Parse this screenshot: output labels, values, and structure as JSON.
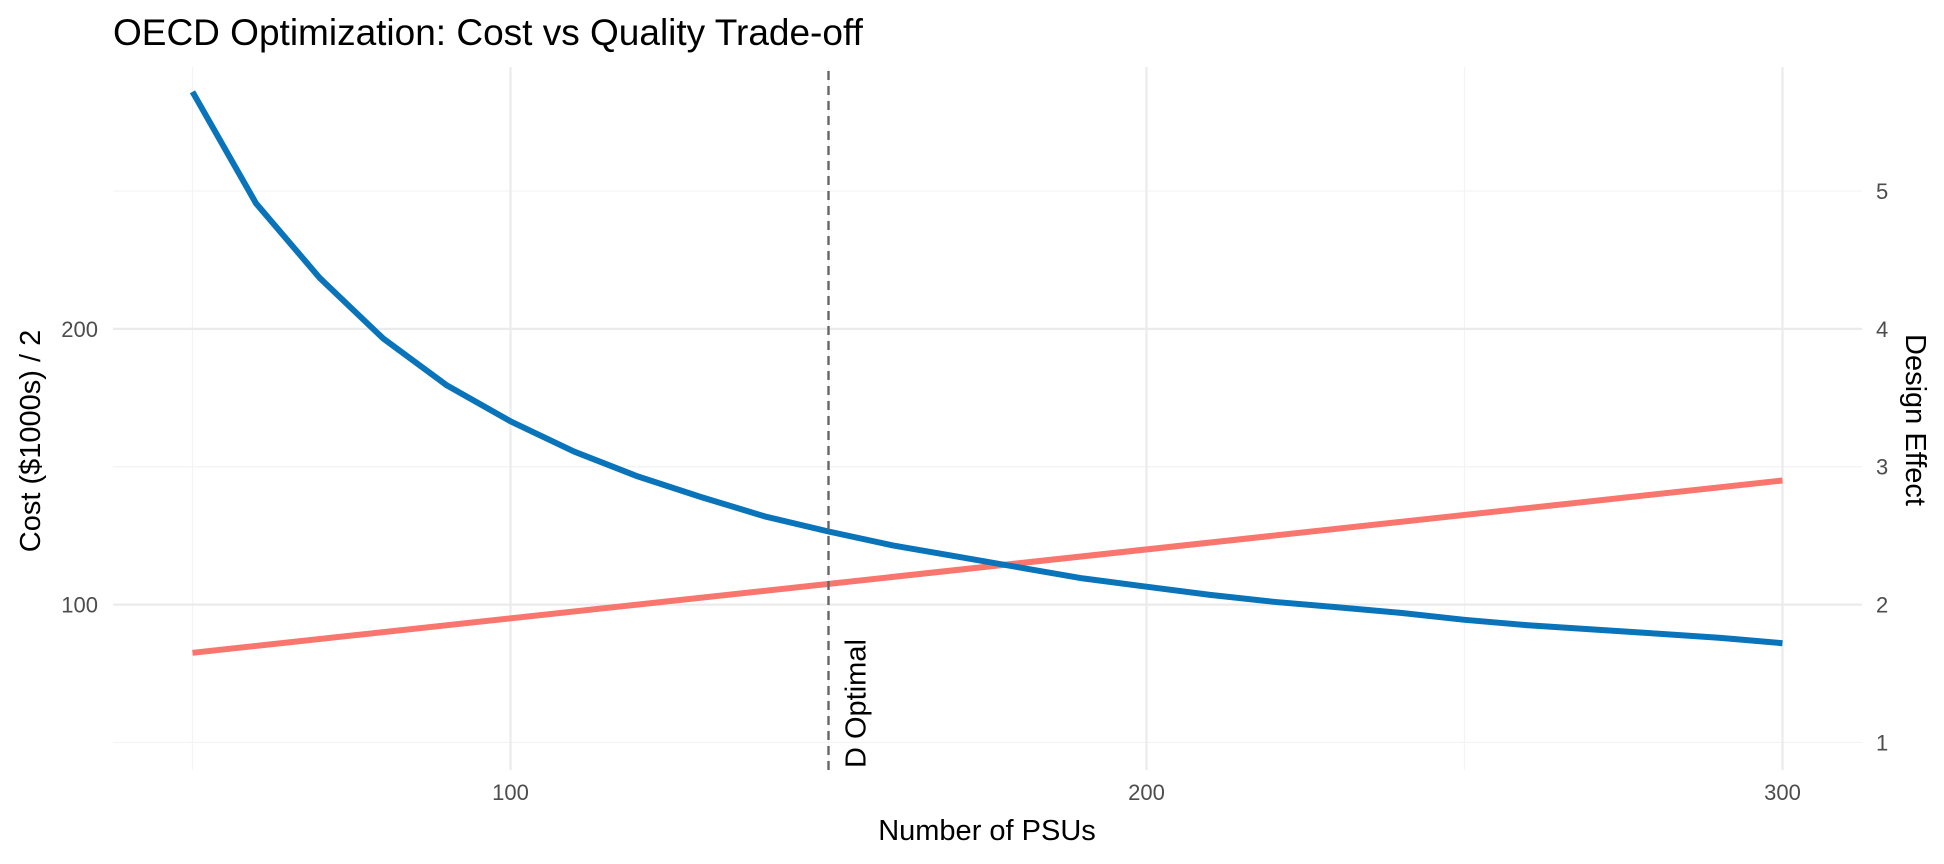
{
  "chart_data": {
    "type": "line",
    "title": "OECD Optimization: Cost vs Quality Trade-off",
    "xlabel": "Number of PSUs",
    "ylabel": "Cost ($1000s) / 2",
    "y2label": "Design Effect",
    "xlim": [
      37.5,
      312.5
    ],
    "ylim": [
      40,
      295
    ],
    "y2lim": [
      0.8,
      5.9
    ],
    "x_ticks": [
      100,
      200,
      300
    ],
    "x_minor_ticks": [
      50,
      150,
      250
    ],
    "y_ticks": [
      100,
      200
    ],
    "y_minor_ticks": [
      50,
      150,
      250
    ],
    "y2_ticks": [
      1,
      2,
      3,
      4,
      5
    ],
    "grid": true,
    "series": [
      {
        "axis": "left",
        "color": "#f8766d",
        "x": [
          50,
          300
        ],
        "values": [
          82.5,
          145
        ]
      },
      {
        "axis": "right",
        "color": "#0a74ba",
        "x": [
          50,
          60,
          70,
          80,
          90,
          100,
          110,
          120,
          130,
          140,
          150,
          160,
          170,
          180,
          190,
          200,
          210,
          220,
          230,
          240,
          250,
          260,
          270,
          280,
          290,
          300
        ],
        "values": [
          5.72,
          4.91,
          4.37,
          3.93,
          3.59,
          3.33,
          3.11,
          2.93,
          2.78,
          2.64,
          2.53,
          2.43,
          2.35,
          2.27,
          2.19,
          2.13,
          2.07,
          2.02,
          1.98,
          1.94,
          1.89,
          1.85,
          1.82,
          1.79,
          1.76,
          1.72
        ]
      }
    ],
    "vline": {
      "x": 150,
      "color": "#666666",
      "style": "dashed",
      "label": "D Optimal"
    }
  }
}
